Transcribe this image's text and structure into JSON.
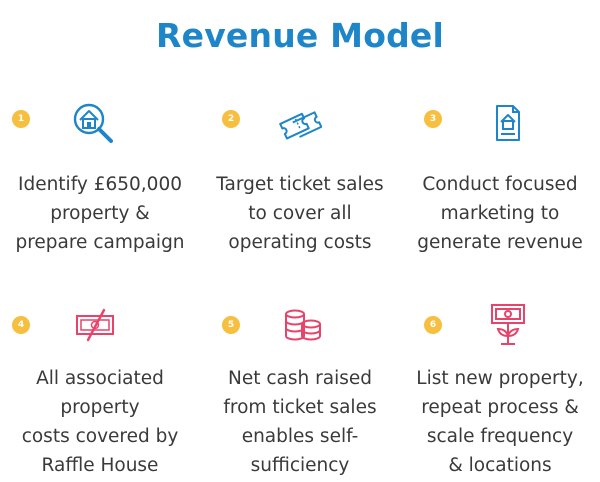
{
  "title": "Revenue Model",
  "colors": {
    "title": "#1e86c8",
    "badge": "#f7bf3f",
    "icon_blue": "#1e86c8",
    "icon_pink": "#e8436b",
    "text": "#3a3a3a"
  },
  "steps": [
    {
      "number": "1",
      "icon": "house-search-icon",
      "lines": [
        "Identify £650,000",
        "property &",
        "prepare campaign"
      ]
    },
    {
      "number": "2",
      "icon": "tickets-icon",
      "lines": [
        "Target ticket sales",
        "to cover all",
        "operating costs"
      ]
    },
    {
      "number": "3",
      "icon": "property-document-icon",
      "lines": [
        "Conduct focused",
        "marketing to",
        "generate revenue"
      ]
    },
    {
      "number": "4",
      "icon": "crossed-cash-icon",
      "lines": [
        "All associated",
        "property",
        "costs covered by",
        "Raffle House"
      ]
    },
    {
      "number": "5",
      "icon": "coin-stack-icon",
      "lines": [
        "Net cash raised",
        "from ticket sales",
        "enables self-",
        "sufficiency"
      ]
    },
    {
      "number": "6",
      "icon": "money-growth-icon",
      "lines": [
        "List new property,",
        "repeat process &",
        "scale frequency",
        "& locations"
      ]
    }
  ]
}
